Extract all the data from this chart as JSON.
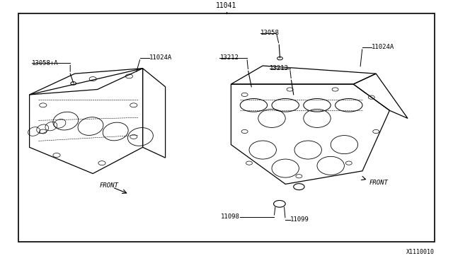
{
  "bg_color": "#ffffff",
  "border_color": "#000000",
  "line_color": "#000000",
  "diagram_title": "11041",
  "catalog_number": "X1110010",
  "labels": {
    "top_center": "11041",
    "left_part1": "13058+A",
    "left_part2": "11024A",
    "right_part1": "13058",
    "right_part2": "11024A",
    "right_part3": "13212",
    "right_part4": "13213",
    "bottom_part1": "11098",
    "bottom_part2": "11099",
    "front_left": "FRONT",
    "front_right": "FRONT"
  },
  "border": [
    0.04,
    0.08,
    0.96,
    0.95
  ],
  "figsize": [
    6.4,
    3.72
  ],
  "dpi": 100
}
